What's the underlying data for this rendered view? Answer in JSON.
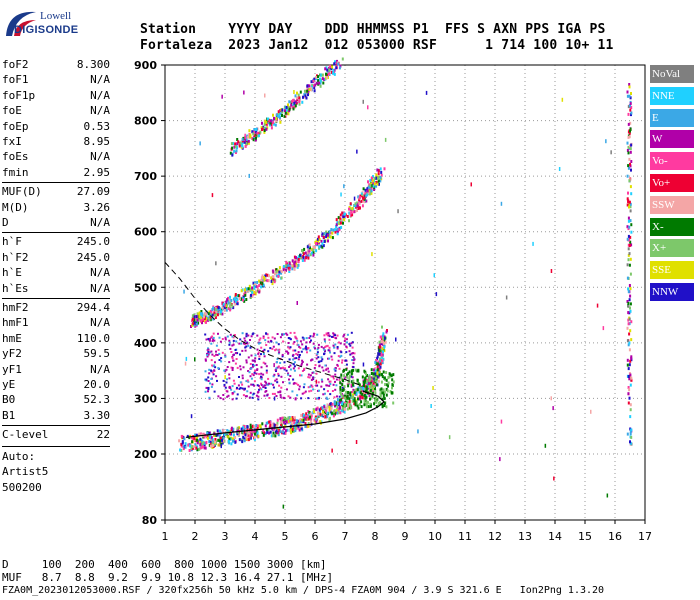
{
  "logo": {
    "line1": "Lowell",
    "line2": "DIGISONDE"
  },
  "header": {
    "line1": "Station    YYYY DAY    DDD HHMMSS P1  FFS S AXN PPS IGA PS",
    "line2": "Fortaleza  2023 Jan12  012 053000 RSF      1 714 100 10+ 11"
  },
  "params": [
    {
      "name": "foF2",
      "value": "8.300"
    },
    {
      "name": "foF1",
      "value": "N/A"
    },
    {
      "name": "foF1p",
      "value": "N/A"
    },
    {
      "name": "foE",
      "value": "N/A"
    },
    {
      "name": "foEp",
      "value": "0.53"
    },
    {
      "name": "fxI",
      "value": "8.95"
    },
    {
      "name": "foEs",
      "value": "N/A"
    },
    {
      "name": "fmin",
      "value": "2.95"
    },
    {
      "name": "MUF(D)",
      "value": "27.09"
    },
    {
      "name": "M(D)",
      "value": "3.26"
    },
    {
      "name": "D",
      "value": "N/A"
    },
    {
      "name": "h`F",
      "value": "245.0"
    },
    {
      "name": "h`F2",
      "value": "245.0"
    },
    {
      "name": "h`E",
      "value": "N/A"
    },
    {
      "name": "h`Es",
      "value": "N/A"
    },
    {
      "name": "hmF2",
      "value": "294.4"
    },
    {
      "name": "hmF1",
      "value": "N/A"
    },
    {
      "name": "hmE",
      "value": "110.0"
    },
    {
      "name": "yF2",
      "value": "59.5"
    },
    {
      "name": "yF1",
      "value": "N/A"
    },
    {
      "name": "yE",
      "value": "20.0"
    },
    {
      "name": "B0",
      "value": "52.3"
    },
    {
      "name": "B1",
      "value": "3.30"
    },
    {
      "name": "C-level",
      "value": "22"
    }
  ],
  "auto": [
    "Auto:",
    "Artist5",
    "500200"
  ],
  "legend": [
    {
      "label": "NoVal",
      "color": "#7f7f7f"
    },
    {
      "label": "NNE",
      "color": "#1fd0ff"
    },
    {
      "label": "E",
      "color": "#3ba8e6"
    },
    {
      "label": "W",
      "color": "#b000a8"
    },
    {
      "label": "Vo-",
      "color": "#ff3aa0"
    },
    {
      "label": "Vo+",
      "color": "#ee0033"
    },
    {
      "label": "SSW",
      "color": "#f4a6a6"
    },
    {
      "label": "X-",
      "color": "#007a00"
    },
    {
      "label": "X+",
      "color": "#7dc86a"
    },
    {
      "label": "SSE",
      "color": "#e0e000"
    },
    {
      "label": "NNW",
      "color": "#2010c8"
    }
  ],
  "bottom": {
    "line1": "D     100  200  400  600  800 1000 1500 3000 [km]",
    "line2": "MUF   8.7  8.8  9.2  9.9 10.8 12.3 16.4 27.1 [MHz]",
    "line3": "FZA0M_2023012053000.RSF / 320fx256h 50 kHz 5.0 km / DPS-4 FZA0M 904 / 3.9 S 321.6 E   Ion2Png 1.3.20"
  },
  "chart_data": {
    "type": "scatter",
    "xlim": [
      1,
      17
    ],
    "ylim": [
      80,
      900
    ],
    "xticks": [
      1,
      2,
      3,
      4,
      5,
      6,
      7,
      8,
      9,
      10,
      11,
      12,
      13,
      14,
      15,
      16,
      17
    ],
    "yticks": [
      80,
      200,
      300,
      400,
      500,
      600,
      700,
      800,
      900
    ],
    "grid": true,
    "traces": [
      {
        "name": "F-trace",
        "points": [
          [
            1.5,
            220
          ],
          [
            2.5,
            228
          ],
          [
            3.5,
            238
          ],
          [
            4.5,
            248
          ],
          [
            5.5,
            260
          ],
          [
            6.5,
            280
          ],
          [
            7.5,
            310
          ],
          [
            8.0,
            340
          ],
          [
            8.3,
            420
          ]
        ]
      },
      {
        "name": "F 2nd-hop",
        "points": [
          [
            1.9,
            440
          ],
          [
            2.5,
            455
          ],
          [
            3.5,
            485
          ],
          [
            4.5,
            520
          ],
          [
            5.5,
            555
          ],
          [
            6.5,
            600
          ],
          [
            7.5,
            660
          ],
          [
            8.2,
            710
          ]
        ]
      },
      {
        "name": "F 3rd-hop",
        "points": [
          [
            3.2,
            750
          ],
          [
            4.0,
            780
          ],
          [
            5.0,
            820
          ],
          [
            6.0,
            870
          ],
          [
            6.8,
            905
          ]
        ]
      }
    ],
    "profile": [
      [
        1.7,
        230
      ],
      [
        3.0,
        238
      ],
      [
        4.5,
        246
      ],
      [
        6.0,
        254
      ],
      [
        7.0,
        263
      ],
      [
        7.7,
        274
      ],
      [
        8.1,
        285
      ],
      [
        8.3,
        294
      ],
      [
        8.1,
        304
      ],
      [
        7.6,
        313
      ]
    ],
    "dashed_curve": [
      [
        1.0,
        545
      ],
      [
        1.5,
        515
      ],
      [
        2.0,
        480
      ],
      [
        2.5,
        450
      ],
      [
        3.0,
        425
      ],
      [
        3.5,
        405
      ],
      [
        4.0,
        390
      ],
      [
        4.5,
        378
      ],
      [
        5.0,
        368
      ],
      [
        5.5,
        358
      ],
      [
        6.0,
        350
      ],
      [
        6.5,
        342
      ],
      [
        7.0,
        334
      ],
      [
        7.5,
        324
      ]
    ]
  }
}
